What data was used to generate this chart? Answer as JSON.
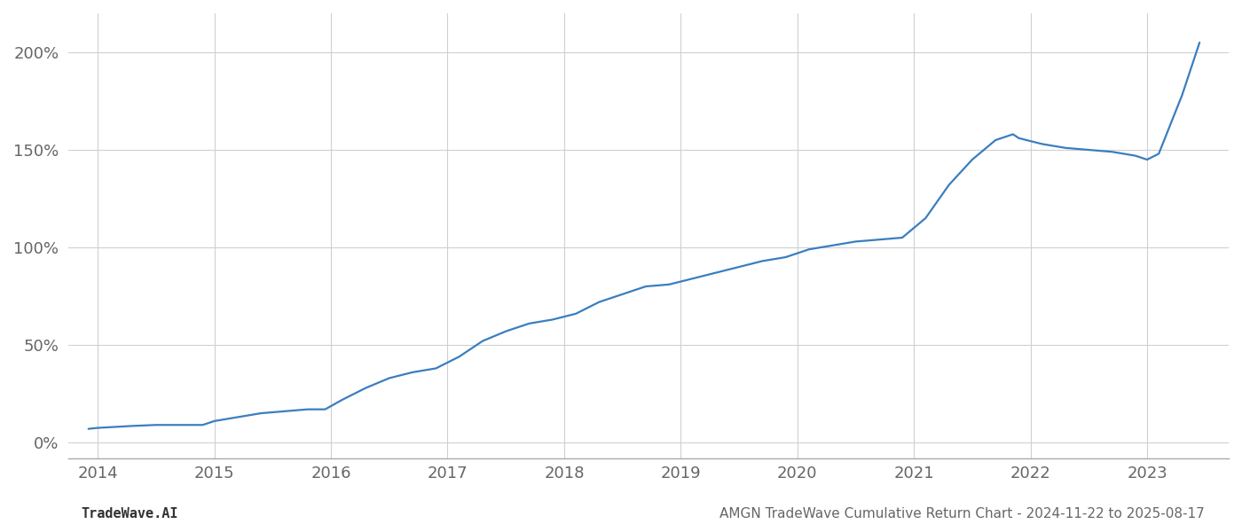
{
  "title": "AMGN TradeWave Cumulative Return Chart - 2024-11-22 to 2025-08-17",
  "footer_left": "TradeWave.AI",
  "line_color": "#3a7ebf",
  "line_width": 1.6,
  "background_color": "#ffffff",
  "grid_color": "#d0d0d0",
  "x_years": [
    2014,
    2015,
    2016,
    2017,
    2018,
    2019,
    2020,
    2021,
    2022,
    2023
  ],
  "x_data": [
    2013.92,
    2014.0,
    2014.15,
    2014.3,
    2014.5,
    2014.7,
    2014.9,
    2015.0,
    2015.2,
    2015.4,
    2015.6,
    2015.8,
    2015.95,
    2016.1,
    2016.3,
    2016.5,
    2016.7,
    2016.9,
    2017.1,
    2017.3,
    2017.5,
    2017.7,
    2017.9,
    2018.1,
    2018.3,
    2018.5,
    2018.7,
    2018.9,
    2019.1,
    2019.3,
    2019.5,
    2019.7,
    2019.9,
    2020.0,
    2020.1,
    2020.3,
    2020.5,
    2020.7,
    2020.9,
    2021.1,
    2021.3,
    2021.5,
    2021.7,
    2021.85,
    2021.9,
    2022.1,
    2022.3,
    2022.5,
    2022.7,
    2022.9,
    2023.0,
    2023.1,
    2023.3,
    2023.45
  ],
  "y_data": [
    7,
    7.5,
    8,
    8.5,
    9,
    9,
    9,
    11,
    13,
    15,
    16,
    17,
    17,
    22,
    28,
    33,
    36,
    38,
    44,
    52,
    57,
    61,
    63,
    66,
    72,
    76,
    80,
    81,
    84,
    87,
    90,
    93,
    95,
    97,
    99,
    101,
    103,
    104,
    105,
    115,
    132,
    145,
    155,
    158,
    156,
    153,
    151,
    150,
    149,
    147,
    145,
    148,
    178,
    205
  ],
  "xlim": [
    2013.75,
    2023.7
  ],
  "ylim": [
    -8,
    220
  ],
  "yticks": [
    0,
    50,
    100,
    150,
    200
  ],
  "ytick_labels": [
    "0%",
    "50%",
    "100%",
    "150%",
    "200%"
  ],
  "tick_fontsize": 13,
  "footer_fontsize": 11,
  "title_fontsize": 11,
  "label_color": "#666666"
}
